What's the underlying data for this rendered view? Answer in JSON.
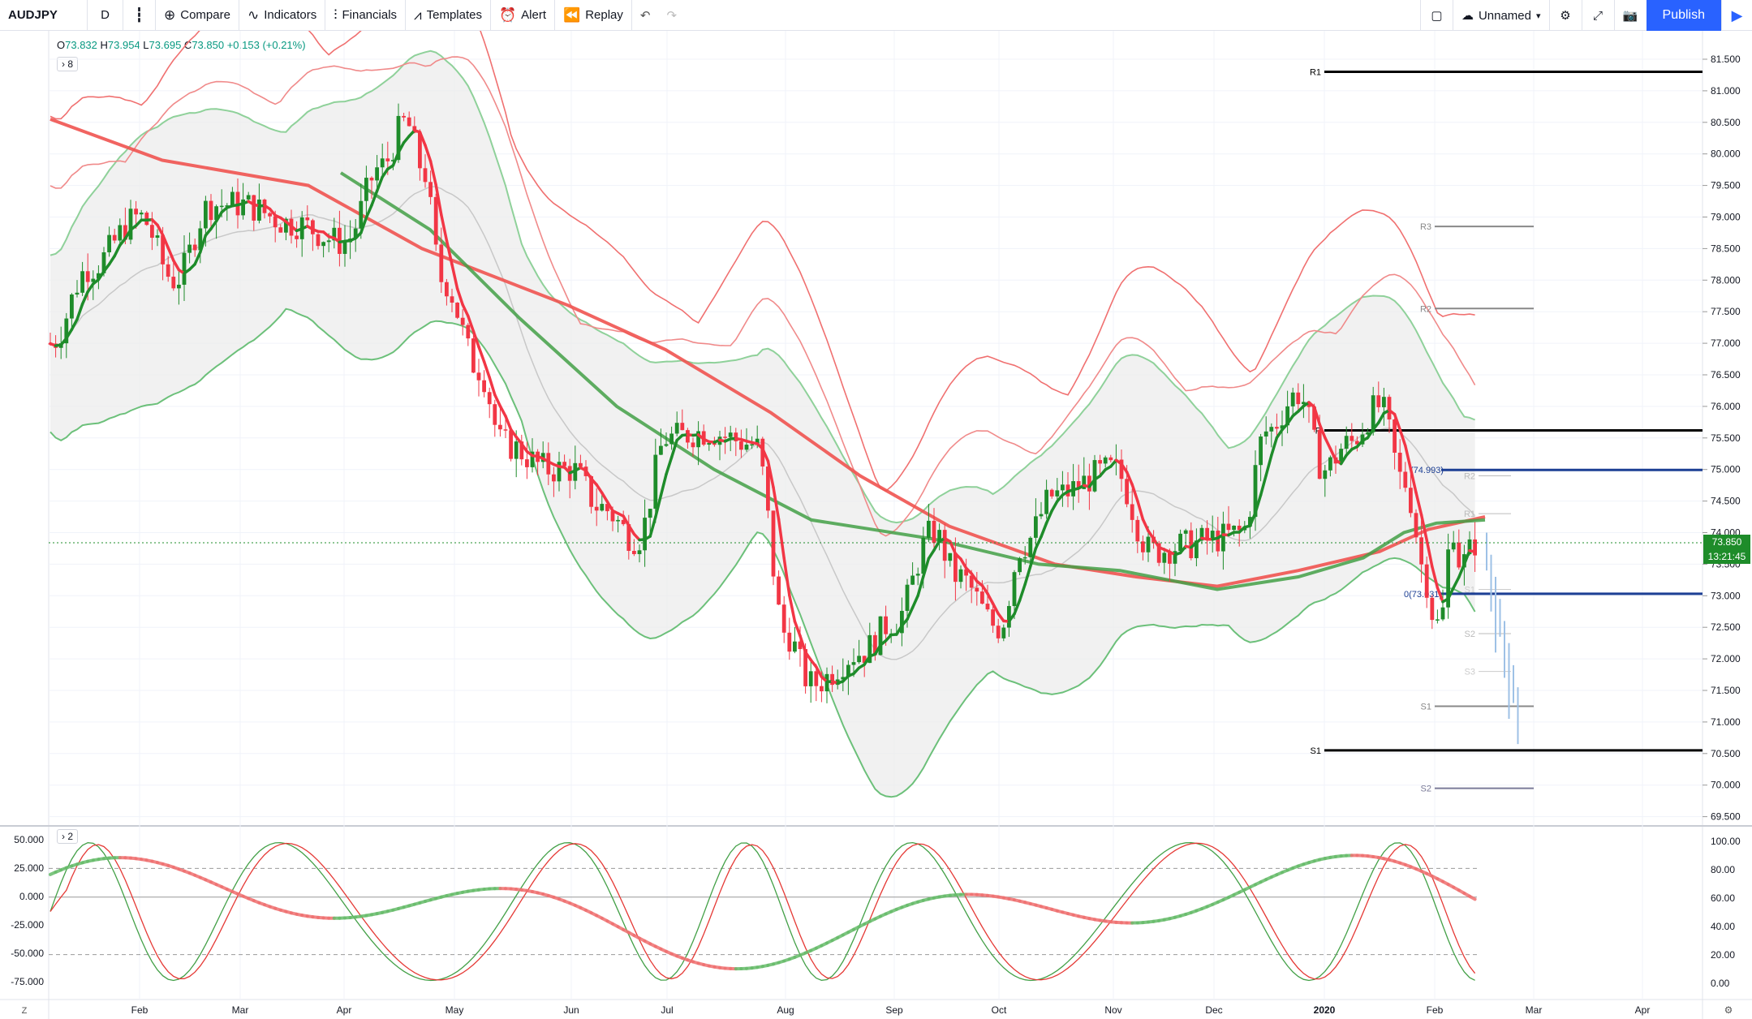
{
  "toolbar": {
    "symbol": "AUDJPY",
    "interval": "D",
    "compare": "Compare",
    "indicators": "Indicators",
    "financials": "Financials",
    "templates": "Templates",
    "alert": "Alert",
    "replay": "Replay",
    "layout_name": "Unnamed",
    "publish": "Publish"
  },
  "legend": {
    "open_key": "O",
    "open": "73.832",
    "high_key": "H",
    "high": "73.954",
    "low_key": "L",
    "low": "73.695",
    "close_key": "C",
    "close": "73.850",
    "change": "+0.153 (+0.21%)",
    "main_collapse": "8",
    "osc_collapse": "2"
  },
  "price_axis": {
    "ticks": [
      "81.500",
      "81.000",
      "80.500",
      "80.000",
      "79.500",
      "79.000",
      "78.500",
      "78.000",
      "77.500",
      "77.000",
      "76.500",
      "76.000",
      "75.500",
      "75.000",
      "74.500",
      "74.000",
      "73.500",
      "73.000",
      "72.500",
      "72.000",
      "71.500",
      "71.000",
      "70.500",
      "70.000",
      "69.500"
    ],
    "last_price": "73.850",
    "countdown": "13:21:45"
  },
  "osc_left_axis": [
    "50.000",
    "25.000",
    "0.000",
    "-25.000",
    "-50.000",
    "-75.000"
  ],
  "osc_right_axis": [
    "100.00",
    "80.00",
    "60.00",
    "40.00",
    "20.00",
    "0.00"
  ],
  "time_axis": [
    "Feb",
    "Mar",
    "Apr",
    "May",
    "Jun",
    "Jul",
    "Aug",
    "Sep",
    "Oct",
    "Nov",
    "Dec",
    "2020",
    "Feb",
    "Mar",
    "Apr"
  ],
  "pivots_yearly": {
    "R1": "R1",
    "P": "P",
    "S1": "S1"
  },
  "pivots_monthly": {
    "R3": "R3",
    "R2": "R2",
    "S1": "S1",
    "S2": "S2"
  },
  "pivots_weekly": {
    "R2": "R2",
    "R1": "R1",
    "S1": "S1",
    "S2": "S2",
    "S3": "S3"
  },
  "fib": {
    "top": "(74.993)",
    "bottom": "0(73.031)"
  },
  "colors": {
    "up": "#1e8c2a",
    "down": "#f23645",
    "ma_red": "#f05a5a",
    "ma_green": "#4caf50",
    "accent": "#2962ff"
  },
  "chart_data": {
    "type": "candlestick",
    "symbol": "AUDJPY",
    "ylim": [
      69.5,
      81.8
    ],
    "x": [
      "2019-01",
      "2019-02",
      "2019-03",
      "2019-04",
      "2019-05",
      "2019-06",
      "2019-07",
      "2019-08",
      "2019-09",
      "2019-10",
      "2019-11",
      "2019-12",
      "2020-01",
      "2020-02"
    ],
    "close_approx": [
      77.8,
      78.6,
      79.2,
      80.4,
      75.8,
      74.6,
      75.9,
      71.8,
      73.8,
      72.0,
      74.6,
      74.2,
      76.2,
      73.85
    ],
    "last_close": 73.85,
    "pivots": {
      "R1": 81.3,
      "P": 75.62,
      "S1": 70.55
    },
    "fib_levels": [
      74.993,
      73.031
    ]
  }
}
